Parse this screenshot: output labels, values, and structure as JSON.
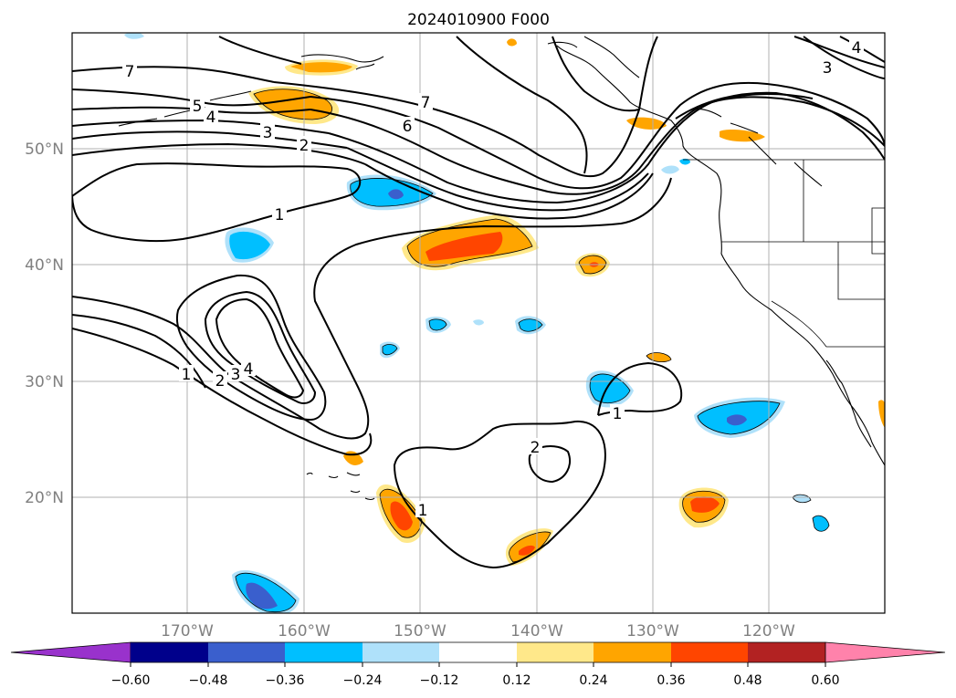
{
  "title": "2024010900 F000",
  "lat_labels": [
    "50°N",
    "40°N",
    "30°N",
    "20°N"
  ],
  "lon_labels": [
    "170°W",
    "160°W",
    "150°W",
    "140°W",
    "130°W",
    "120°W"
  ],
  "colorbar": {
    "ticks": [
      "−0.60",
      "−0.48",
      "−0.36",
      "−0.24",
      "−0.12",
      "0.12",
      "0.24",
      "0.36",
      "0.48",
      "0.60"
    ],
    "colors": [
      "#9932cc",
      "#00008b",
      "#3a5fcd",
      "#00bfff",
      "#afe1fa",
      "#ffffff",
      "#ffe88a",
      "#ffa500",
      "#ff4500",
      "#b22222",
      "#ff82ab"
    ]
  },
  "contour_labels": [
    "7",
    "5",
    "4",
    "3",
    "2",
    "7",
    "6",
    "1",
    "3",
    "4",
    "1",
    "2",
    "3",
    "4",
    "1",
    "2",
    "1"
  ]
}
